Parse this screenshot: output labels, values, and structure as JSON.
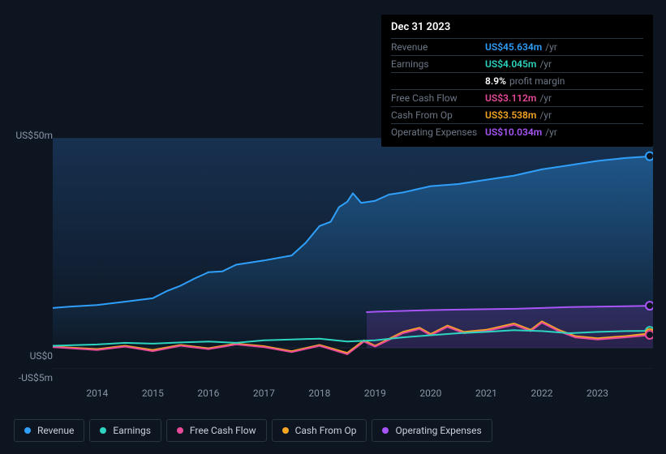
{
  "tooltip": {
    "date": "Dec 31 2023",
    "rows": [
      {
        "label": "Revenue",
        "value": "US$45.634m",
        "suffix": "/yr",
        "cls": "revenue"
      },
      {
        "label": "Earnings",
        "value": "US$4.045m",
        "suffix": "/yr",
        "cls": "earnings"
      },
      {
        "label": "",
        "value": "8.9%",
        "suffix": "profit margin",
        "cls": "pm-val"
      },
      {
        "label": "Free Cash Flow",
        "value": "US$3.112m",
        "suffix": "/yr",
        "cls": "fcf"
      },
      {
        "label": "Cash From Op",
        "value": "US$3.538m",
        "suffix": "/yr",
        "cls": "cfo"
      },
      {
        "label": "Operating Expenses",
        "value": "US$10.034m",
        "suffix": "/yr",
        "cls": "opex"
      }
    ]
  },
  "chart": {
    "background": "#0d1521",
    "plot_gradient_top": "#1a3a5c",
    "plot_gradient_bottom": "#0d1521",
    "y_ticks": [
      {
        "label": "US$50m",
        "val": 50
      },
      {
        "label": "US$0",
        "val": 0
      },
      {
        "label": "-US$5m",
        "val": -5
      }
    ],
    "ylim": [
      -5,
      50
    ],
    "x_years": [
      "2014",
      "2015",
      "2016",
      "2017",
      "2018",
      "2019",
      "2020",
      "2021",
      "2022",
      "2023"
    ],
    "x_start": 2013.2,
    "x_end": 2024.0,
    "tick_font_size": 12,
    "tick_color": "#8a94a6",
    "gridline_color": "#1f2733",
    "series": {
      "revenue": {
        "color": "#2f9ffa",
        "width": 2,
        "fill": true,
        "fill_opacity": 0.35,
        "data": [
          [
            2013.2,
            9.5
          ],
          [
            2013.5,
            9.8
          ],
          [
            2014.0,
            10.2
          ],
          [
            2014.5,
            11.0
          ],
          [
            2015.0,
            11.8
          ],
          [
            2015.25,
            13.5
          ],
          [
            2015.5,
            14.8
          ],
          [
            2015.75,
            16.5
          ],
          [
            2016.0,
            18.0
          ],
          [
            2016.25,
            18.2
          ],
          [
            2016.5,
            19.8
          ],
          [
            2017.0,
            20.8
          ],
          [
            2017.5,
            22.0
          ],
          [
            2017.75,
            25.0
          ],
          [
            2018.0,
            29.0
          ],
          [
            2018.2,
            30.0
          ],
          [
            2018.35,
            33.5
          ],
          [
            2018.5,
            34.8
          ],
          [
            2018.6,
            36.8
          ],
          [
            2018.75,
            34.5
          ],
          [
            2019.0,
            35.0
          ],
          [
            2019.25,
            36.5
          ],
          [
            2019.5,
            37.0
          ],
          [
            2020.0,
            38.5
          ],
          [
            2020.5,
            39.0
          ],
          [
            2021.0,
            40.0
          ],
          [
            2021.5,
            41.0
          ],
          [
            2022.0,
            42.5
          ],
          [
            2022.5,
            43.5
          ],
          [
            2023.0,
            44.5
          ],
          [
            2023.5,
            45.2
          ],
          [
            2024.0,
            45.634
          ]
        ]
      },
      "earnings": {
        "color": "#2dd4bf",
        "width": 2,
        "fill": false,
        "data": [
          [
            2013.2,
            0.5
          ],
          [
            2014.0,
            0.8
          ],
          [
            2014.5,
            1.2
          ],
          [
            2015.0,
            1.0
          ],
          [
            2015.5,
            1.3
          ],
          [
            2016.0,
            1.5
          ],
          [
            2016.5,
            1.2
          ],
          [
            2017.0,
            1.8
          ],
          [
            2017.5,
            2.0
          ],
          [
            2018.0,
            2.2
          ],
          [
            2018.5,
            1.5
          ],
          [
            2019.0,
            1.8
          ],
          [
            2019.5,
            2.5
          ],
          [
            2020.0,
            3.0
          ],
          [
            2020.5,
            3.5
          ],
          [
            2021.0,
            3.8
          ],
          [
            2021.5,
            4.2
          ],
          [
            2022.0,
            4.0
          ],
          [
            2022.5,
            3.5
          ],
          [
            2023.0,
            3.8
          ],
          [
            2023.5,
            4.0
          ],
          [
            2024.0,
            4.045
          ]
        ]
      },
      "fcf": {
        "color": "#e84a9a",
        "width": 2,
        "fill": false,
        "data": [
          [
            2013.2,
            0.2
          ],
          [
            2014.0,
            -0.5
          ],
          [
            2014.5,
            0.3
          ],
          [
            2015.0,
            -0.8
          ],
          [
            2015.5,
            0.5
          ],
          [
            2016.0,
            -0.3
          ],
          [
            2016.5,
            0.8
          ],
          [
            2017.0,
            0.2
          ],
          [
            2017.5,
            -1.0
          ],
          [
            2018.0,
            0.5
          ],
          [
            2018.5,
            -1.5
          ],
          [
            2018.8,
            1.5
          ],
          [
            2019.0,
            0.3
          ],
          [
            2019.5,
            3.5
          ],
          [
            2019.8,
            4.5
          ],
          [
            2020.0,
            3.0
          ],
          [
            2020.3,
            5.0
          ],
          [
            2020.6,
            3.5
          ],
          [
            2021.0,
            4.0
          ],
          [
            2021.5,
            5.5
          ],
          [
            2021.8,
            4.0
          ],
          [
            2022.0,
            6.0
          ],
          [
            2022.3,
            4.0
          ],
          [
            2022.6,
            2.5
          ],
          [
            2023.0,
            2.0
          ],
          [
            2023.5,
            2.5
          ],
          [
            2024.0,
            3.112
          ]
        ]
      },
      "cfo": {
        "color": "#f5a623",
        "width": 2,
        "fill": false,
        "data": [
          [
            2013.2,
            0.3
          ],
          [
            2014.0,
            -0.3
          ],
          [
            2014.5,
            0.5
          ],
          [
            2015.0,
            -0.5
          ],
          [
            2015.5,
            0.7
          ],
          [
            2016.0,
            -0.1
          ],
          [
            2016.5,
            1.0
          ],
          [
            2017.0,
            0.4
          ],
          [
            2017.5,
            -0.8
          ],
          [
            2018.0,
            0.7
          ],
          [
            2018.5,
            -1.2
          ],
          [
            2018.8,
            1.8
          ],
          [
            2019.0,
            0.5
          ],
          [
            2019.5,
            3.8
          ],
          [
            2019.8,
            4.8
          ],
          [
            2020.0,
            3.3
          ],
          [
            2020.3,
            5.3
          ],
          [
            2020.6,
            3.8
          ],
          [
            2021.0,
            4.3
          ],
          [
            2021.5,
            5.8
          ],
          [
            2021.8,
            4.3
          ],
          [
            2022.0,
            6.3
          ],
          [
            2022.3,
            4.3
          ],
          [
            2022.6,
            2.8
          ],
          [
            2023.0,
            2.3
          ],
          [
            2023.5,
            2.8
          ],
          [
            2024.0,
            3.538
          ]
        ]
      },
      "opex": {
        "color": "#a855f7",
        "width": 2,
        "fill": true,
        "fill_opacity": 0.18,
        "start_x": 2018.85,
        "data": [
          [
            2018.85,
            8.5
          ],
          [
            2019.0,
            8.6
          ],
          [
            2019.5,
            8.8
          ],
          [
            2020.0,
            9.0
          ],
          [
            2020.5,
            9.1
          ],
          [
            2021.0,
            9.2
          ],
          [
            2021.5,
            9.3
          ],
          [
            2022.0,
            9.5
          ],
          [
            2022.5,
            9.7
          ],
          [
            2023.0,
            9.8
          ],
          [
            2023.5,
            9.9
          ],
          [
            2024.0,
            10.034
          ]
        ]
      }
    },
    "end_markers": [
      {
        "cls": "revenue",
        "color": "#2f9ffa",
        "val": 45.634
      },
      {
        "cls": "opex",
        "color": "#a855f7",
        "val": 10.034
      },
      {
        "cls": "earnings",
        "color": "#2dd4bf",
        "val": 4.045
      },
      {
        "cls": "cfo",
        "color": "#f5a623",
        "val": 3.538
      },
      {
        "cls": "fcf",
        "color": "#e84a9a",
        "val": 3.112
      }
    ]
  },
  "legend": [
    {
      "label": "Revenue",
      "cls": "revenue"
    },
    {
      "label": "Earnings",
      "cls": "earnings"
    },
    {
      "label": "Free Cash Flow",
      "cls": "fcf"
    },
    {
      "label": "Cash From Op",
      "cls": "cfo"
    },
    {
      "label": "Operating Expenses",
      "cls": "opex"
    }
  ]
}
